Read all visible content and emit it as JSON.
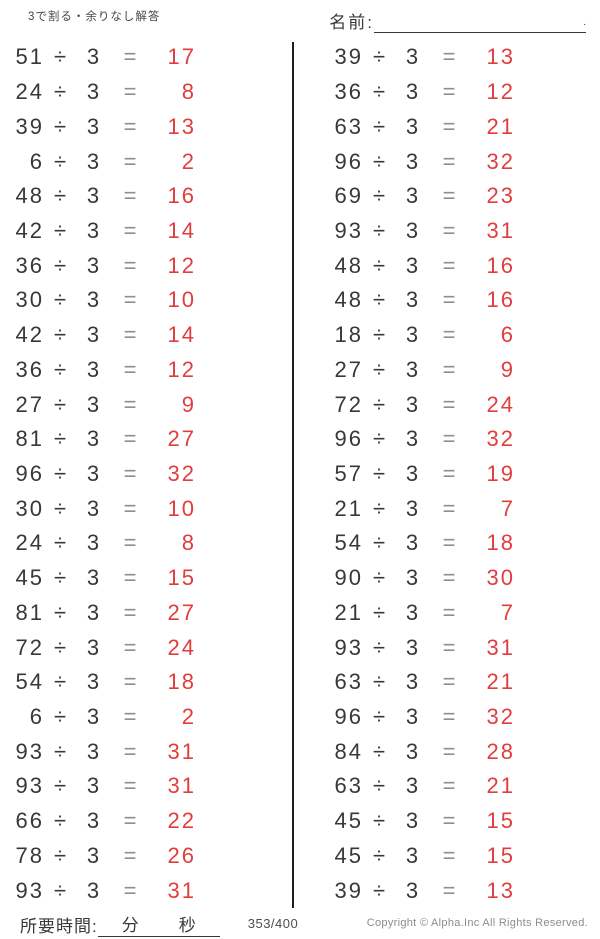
{
  "header": {
    "title": "3で割る・余りなし解答",
    "name_label": "名前:",
    "name_line_end": "."
  },
  "problems": {
    "operator": "÷",
    "divisor": "3",
    "equals": "=",
    "left": [
      {
        "dividend": "51",
        "answer": "17"
      },
      {
        "dividend": "24",
        "answer": "8"
      },
      {
        "dividend": "39",
        "answer": "13"
      },
      {
        "dividend": "6",
        "answer": "2"
      },
      {
        "dividend": "48",
        "answer": "16"
      },
      {
        "dividend": "42",
        "answer": "14"
      },
      {
        "dividend": "36",
        "answer": "12"
      },
      {
        "dividend": "30",
        "answer": "10"
      },
      {
        "dividend": "42",
        "answer": "14"
      },
      {
        "dividend": "36",
        "answer": "12"
      },
      {
        "dividend": "27",
        "answer": "9"
      },
      {
        "dividend": "81",
        "answer": "27"
      },
      {
        "dividend": "96",
        "answer": "32"
      },
      {
        "dividend": "30",
        "answer": "10"
      },
      {
        "dividend": "24",
        "answer": "8"
      },
      {
        "dividend": "45",
        "answer": "15"
      },
      {
        "dividend": "81",
        "answer": "27"
      },
      {
        "dividend": "72",
        "answer": "24"
      },
      {
        "dividend": "54",
        "answer": "18"
      },
      {
        "dividend": "6",
        "answer": "2"
      },
      {
        "dividend": "93",
        "answer": "31"
      },
      {
        "dividend": "93",
        "answer": "31"
      },
      {
        "dividend": "66",
        "answer": "22"
      },
      {
        "dividend": "78",
        "answer": "26"
      },
      {
        "dividend": "93",
        "answer": "31"
      }
    ],
    "right": [
      {
        "dividend": "39",
        "answer": "13"
      },
      {
        "dividend": "36",
        "answer": "12"
      },
      {
        "dividend": "63",
        "answer": "21"
      },
      {
        "dividend": "96",
        "answer": "32"
      },
      {
        "dividend": "69",
        "answer": "23"
      },
      {
        "dividend": "93",
        "answer": "31"
      },
      {
        "dividend": "48",
        "answer": "16"
      },
      {
        "dividend": "48",
        "answer": "16"
      },
      {
        "dividend": "18",
        "answer": "6"
      },
      {
        "dividend": "27",
        "answer": "9"
      },
      {
        "dividend": "72",
        "answer": "24"
      },
      {
        "dividend": "96",
        "answer": "32"
      },
      {
        "dividend": "57",
        "answer": "19"
      },
      {
        "dividend": "21",
        "answer": "7"
      },
      {
        "dividend": "54",
        "answer": "18"
      },
      {
        "dividend": "90",
        "answer": "30"
      },
      {
        "dividend": "21",
        "answer": "7"
      },
      {
        "dividend": "93",
        "answer": "31"
      },
      {
        "dividend": "63",
        "answer": "21"
      },
      {
        "dividend": "96",
        "answer": "32"
      },
      {
        "dividend": "84",
        "answer": "28"
      },
      {
        "dividend": "63",
        "answer": "21"
      },
      {
        "dividend": "45",
        "answer": "15"
      },
      {
        "dividend": "45",
        "answer": "15"
      },
      {
        "dividend": "39",
        "answer": "13"
      }
    ]
  },
  "footer": {
    "time_label": "所要時間:",
    "minutes_label": "分",
    "seconds_label": "秒",
    "page_indicator": "353/400",
    "copyright": "Copyright ©  Alpha.Inc All Rights Reserved."
  },
  "colors": {
    "answer_red": "#e13d3d",
    "text": "#3a3737"
  }
}
